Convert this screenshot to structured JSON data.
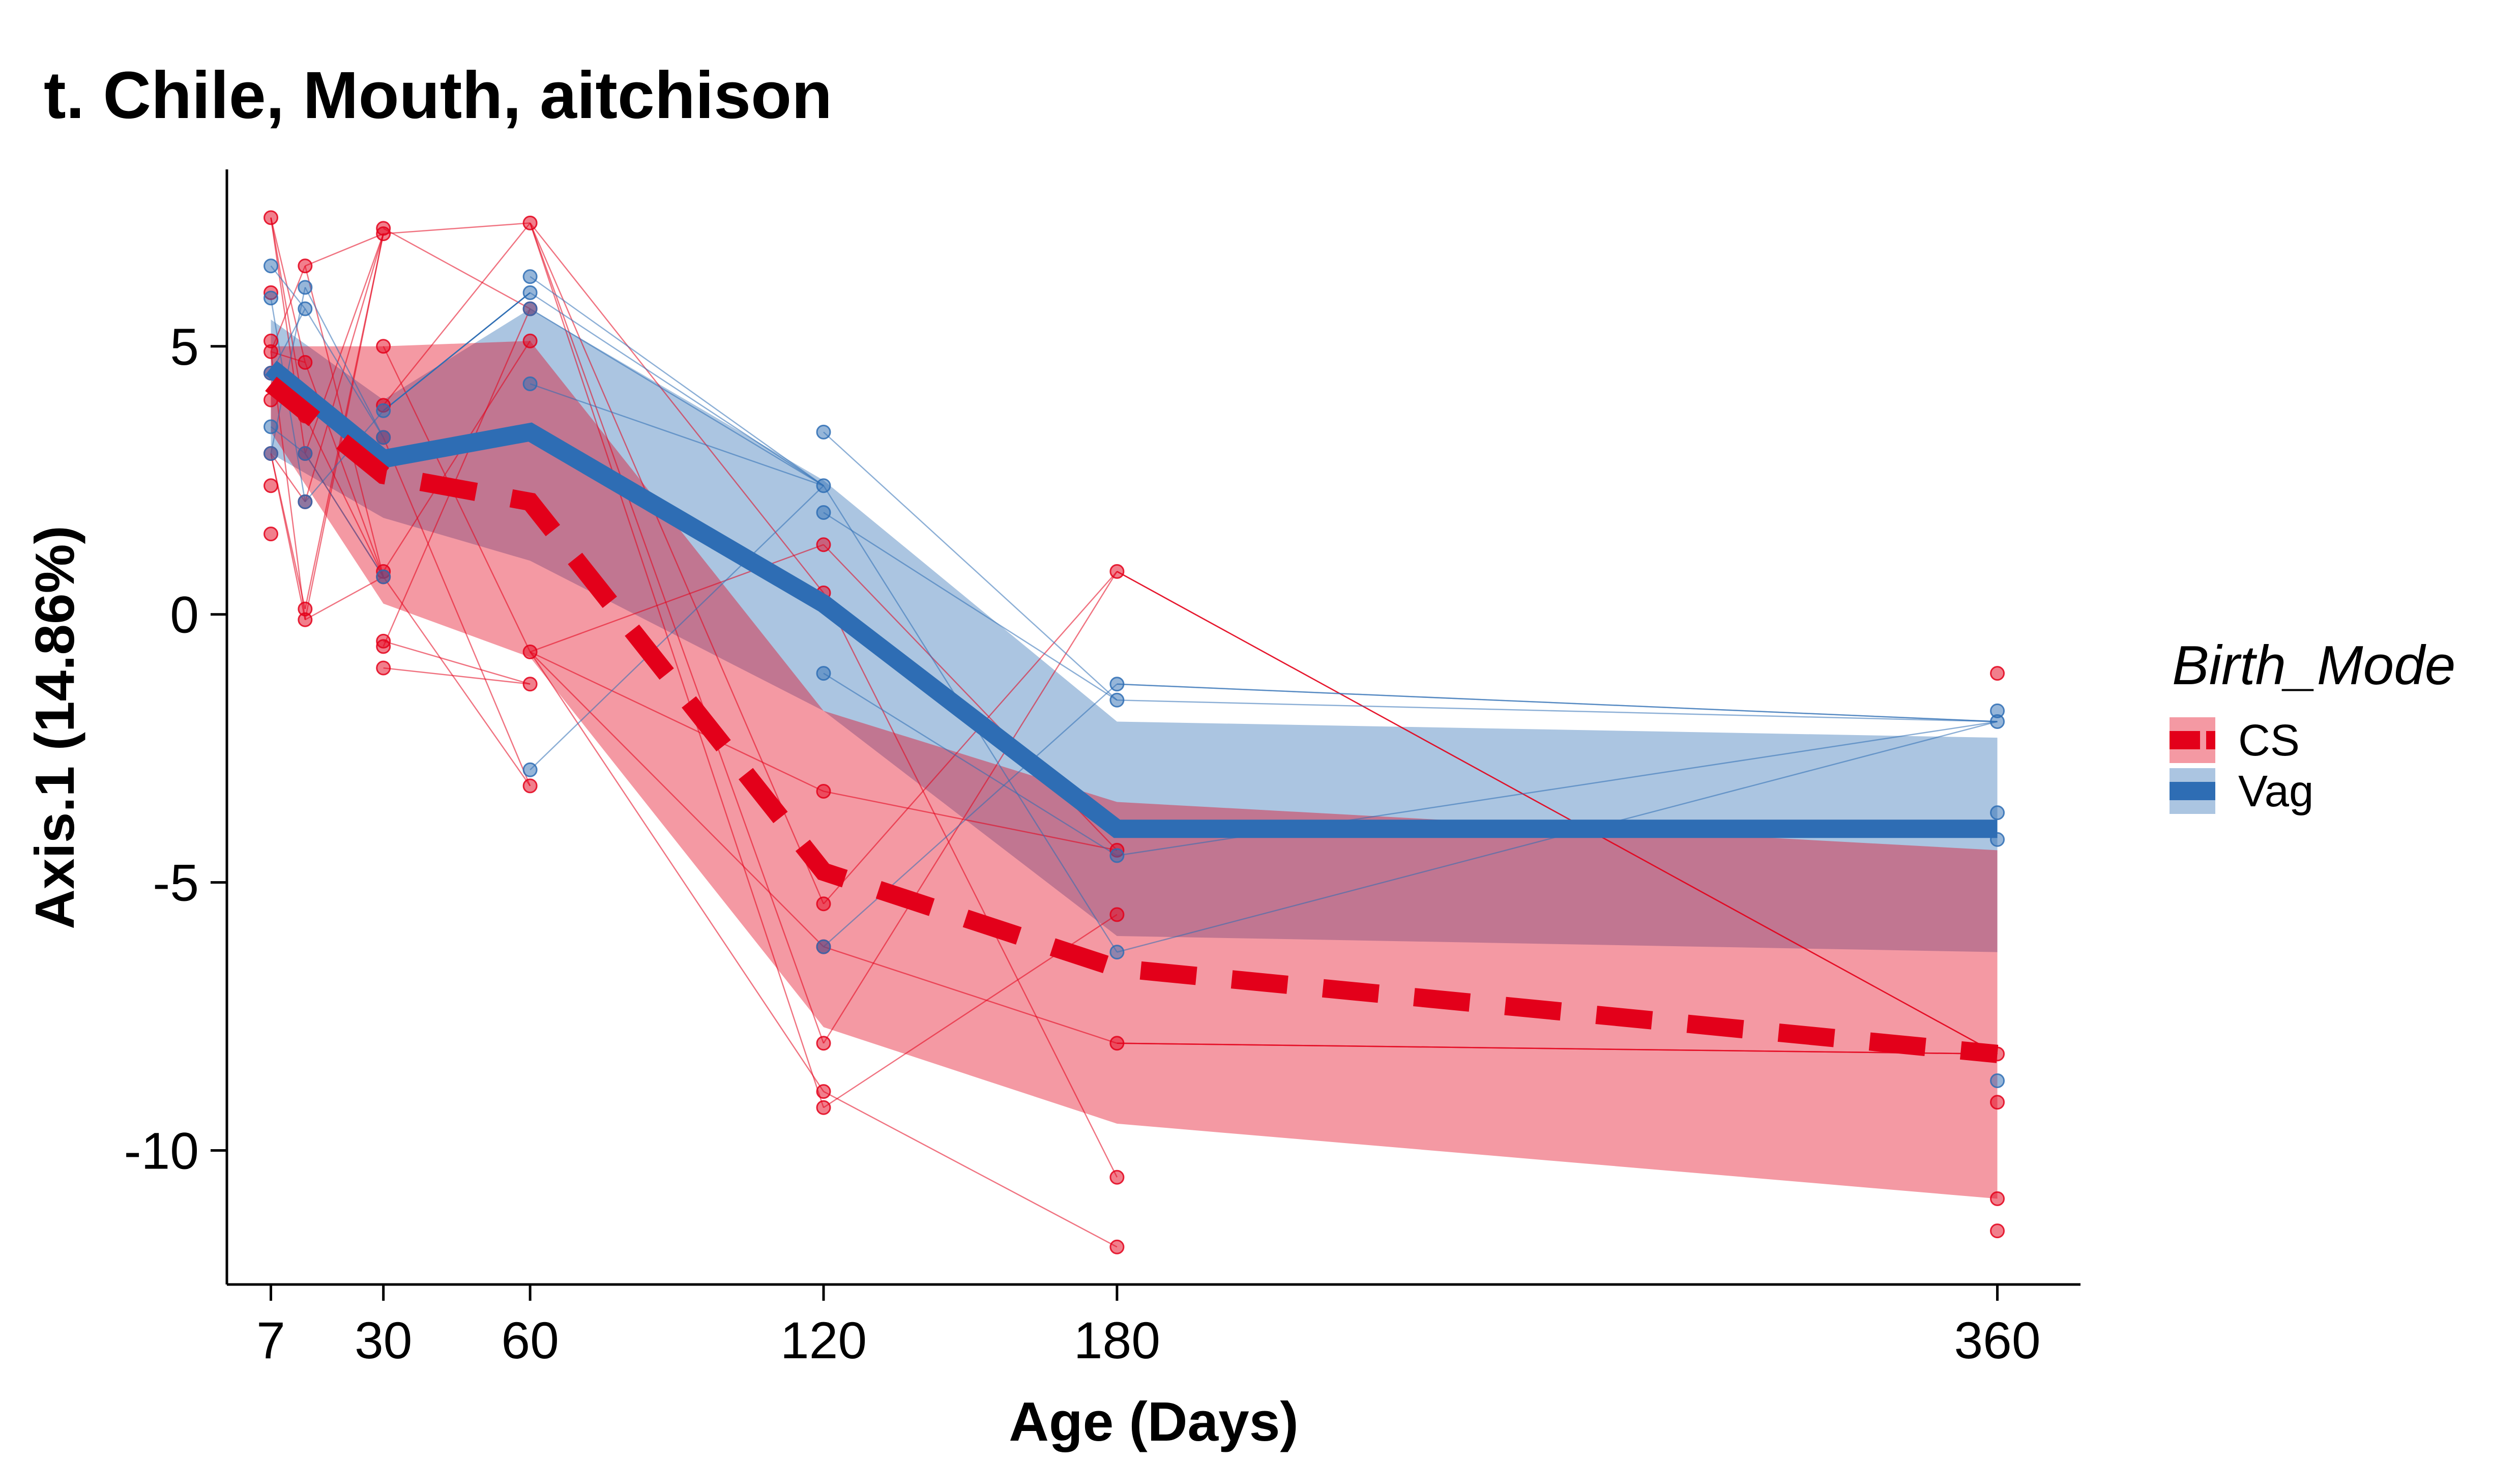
{
  "chart_data": {
    "type": "line",
    "title": "t. Chile, Mouth, aitchison",
    "xlabel": "Age (Days)",
    "ylabel": "Axis.1 (14.86%)",
    "x_ticks": [
      7,
      30,
      60,
      120,
      180,
      360
    ],
    "y_ticks": [
      5,
      0,
      -5,
      -10
    ],
    "xlim": [
      -2,
      377
    ],
    "ylim": [
      -12.5,
      8.3
    ],
    "grid": false,
    "legend": {
      "title": "Birth_Mode",
      "position": "right",
      "entries": [
        "CS",
        "Vag"
      ]
    },
    "series": [
      {
        "name": "CS",
        "color": "#E3001A",
        "line_style": "dashed",
        "x": [
          7,
          30,
          60,
          120,
          180,
          360
        ],
        "mean": [
          4.3,
          2.6,
          2.1,
          -4.8,
          -6.6,
          -8.2
        ],
        "ribbon_upper": [
          5.0,
          5.0,
          5.1,
          -1.8,
          -3.5,
          -4.4
        ],
        "ribbon_lower": [
          3.4,
          0.2,
          -0.8,
          -7.7,
          -9.5,
          -10.9
        ],
        "points": [
          [
            7,
            7.4
          ],
          [
            7,
            6.0
          ],
          [
            7,
            5.1
          ],
          [
            7,
            4.9
          ],
          [
            7,
            4.5
          ],
          [
            7,
            4.0
          ],
          [
            7,
            3.0
          ],
          [
            7,
            2.4
          ],
          [
            7,
            1.5
          ],
          [
            14,
            6.5
          ],
          [
            14,
            4.7
          ],
          [
            14,
            3.7
          ],
          [
            14,
            3.0
          ],
          [
            14,
            2.1
          ],
          [
            14,
            0.1
          ],
          [
            14,
            -0.1
          ],
          [
            30,
            7.2
          ],
          [
            30,
            7.1
          ],
          [
            30,
            5.0
          ],
          [
            30,
            3.9
          ],
          [
            30,
            3.3
          ],
          [
            30,
            0.8
          ],
          [
            30,
            0.7
          ],
          [
            30,
            -0.5
          ],
          [
            30,
            -0.6
          ],
          [
            30,
            -1.0
          ],
          [
            60,
            7.3
          ],
          [
            60,
            5.7
          ],
          [
            60,
            5.1
          ],
          [
            60,
            -0.7
          ],
          [
            60,
            -1.3
          ],
          [
            60,
            -3.2
          ],
          [
            120,
            1.3
          ],
          [
            120,
            0.4
          ],
          [
            120,
            -3.3
          ],
          [
            120,
            -5.4
          ],
          [
            120,
            -6.2
          ],
          [
            120,
            -8.0
          ],
          [
            120,
            -8.9
          ],
          [
            120,
            -9.2
          ],
          [
            180,
            0.8
          ],
          [
            180,
            -4.4
          ],
          [
            180,
            -5.6
          ],
          [
            180,
            -8.0
          ],
          [
            180,
            -10.5
          ],
          [
            180,
            -11.8
          ],
          [
            360,
            -1.1
          ],
          [
            360,
            -8.2
          ],
          [
            360,
            -9.1
          ],
          [
            360,
            -10.9
          ],
          [
            360,
            -11.5
          ]
        ]
      },
      {
        "name": "Vag",
        "color": "#2E6DB4",
        "line_style": "solid",
        "x": [
          7,
          30,
          60,
          120,
          180,
          360
        ],
        "mean": [
          4.6,
          2.9,
          3.4,
          0.2,
          -4.0,
          -4.0
        ],
        "ribbon_upper": [
          5.5,
          4.0,
          5.7,
          2.5,
          -2.0,
          -2.3
        ],
        "ribbon_lower": [
          3.0,
          1.8,
          1.0,
          -1.8,
          -6.0,
          -6.3
        ],
        "points": [
          [
            7,
            6.5
          ],
          [
            7,
            5.9
          ],
          [
            7,
            4.5
          ],
          [
            7,
            3.5
          ],
          [
            7,
            3.0
          ],
          [
            14,
            6.1
          ],
          [
            14,
            5.7
          ],
          [
            14,
            3.0
          ],
          [
            14,
            2.1
          ],
          [
            30,
            3.8
          ],
          [
            30,
            3.3
          ],
          [
            30,
            0.7
          ],
          [
            60,
            6.3
          ],
          [
            60,
            6.0
          ],
          [
            60,
            5.7
          ],
          [
            60,
            4.3
          ],
          [
            60,
            -2.9
          ],
          [
            120,
            3.4
          ],
          [
            120,
            2.4
          ],
          [
            120,
            1.9
          ],
          [
            120,
            -1.1
          ],
          [
            120,
            -6.2
          ],
          [
            180,
            -1.3
          ],
          [
            180,
            -1.6
          ],
          [
            180,
            -4.5
          ],
          [
            180,
            -6.3
          ],
          [
            360,
            -1.8
          ],
          [
            360,
            -2.0
          ],
          [
            360,
            -3.7
          ],
          [
            360,
            -4.2
          ],
          [
            360,
            -8.7
          ]
        ]
      }
    ]
  }
}
